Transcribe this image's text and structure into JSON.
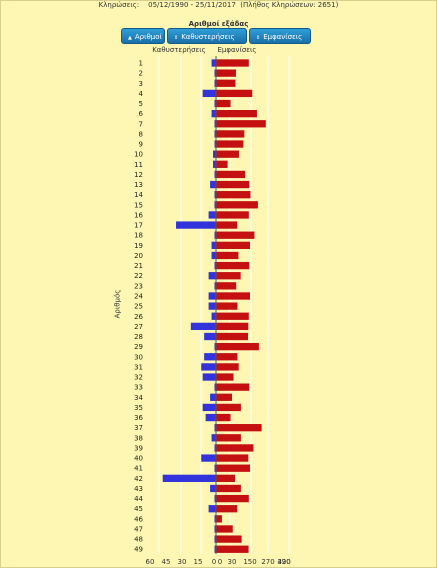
{
  "header": {
    "draws_label": "Κληρώσεις:",
    "date_range": "05/12/1990 - 25/11/2017",
    "draws_count_text": "(Πλήθος Κληρώσεων: 2651)"
  },
  "section_title": "Αριθμοί εξάδας",
  "sort_buttons": {
    "numbers": "Αριθμοί",
    "delays": "Καθυστερήσεις",
    "appearances": "Εμφανίσεις"
  },
  "colors": {
    "delays": "#3333dd",
    "appearances": "#c41010",
    "background": "#fdf7b3"
  },
  "chart_data": {
    "type": "bar",
    "orientation": "horizontal-diverging",
    "ylabel": "Αριθμός",
    "left_title": "Καθυστερήσεις",
    "right_title": "Εμφανίσεις",
    "left_ticks": [
      "60",
      "45",
      "30",
      "15",
      "0"
    ],
    "right_ticks": [
      "0",
      "30",
      "150",
      "270",
      "390",
      "420"
    ],
    "categories": [
      "1",
      "2",
      "3",
      "4",
      "5",
      "6",
      "7",
      "8",
      "9",
      "10",
      "11",
      "12",
      "13",
      "14",
      "15",
      "16",
      "17",
      "18",
      "19",
      "20",
      "21",
      "22",
      "23",
      "24",
      "25",
      "26",
      "27",
      "28",
      "29",
      "30",
      "31",
      "32",
      "33",
      "34",
      "35",
      "36",
      "37",
      "38",
      "39",
      "40",
      "41",
      "42",
      "43",
      "44",
      "45",
      "46",
      "47",
      "48",
      "49"
    ],
    "series": [
      {
        "name": "Καθυστερήσεις",
        "side": "left",
        "values": [
          3,
          0,
          1,
          9,
          1,
          3,
          0,
          0,
          1,
          2,
          2,
          1,
          4,
          0,
          0,
          5,
          27,
          0,
          3,
          3,
          0,
          5,
          0,
          5,
          5,
          3,
          17,
          8,
          0,
          8,
          10,
          9,
          1,
          4,
          9,
          7,
          0,
          3,
          0,
          10,
          1,
          36,
          4,
          0,
          5,
          0,
          1,
          1,
          0
        ]
      },
      {
        "name": "Εμφανίσεις",
        "side": "right",
        "values": [
          343,
          291,
          289,
          357,
          269,
          376,
          412,
          325,
          321,
          303,
          257,
          328,
          345,
          350,
          380,
          343,
          296,
          366,
          348,
          301,
          345,
          310,
          292,
          348,
          297,
          343,
          341,
          340,
          384,
          297,
          302,
          281,
          345,
          275,
          311,
          269,
          395,
          311,
          362,
          341,
          348,
          287,
          311,
          343,
          296,
          234,
          278,
          314,
          342
        ]
      }
    ]
  }
}
